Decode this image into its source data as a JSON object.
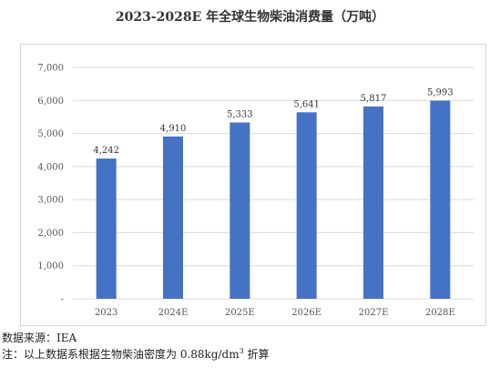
{
  "chart_data": {
    "type": "bar",
    "title": "2023-2028E 年全球生物柴油消费量（万吨）",
    "categories": [
      "2023",
      "2024E",
      "2025E",
      "2026E",
      "2027E",
      "2028E"
    ],
    "values": [
      4242,
      4910,
      5333,
      5641,
      5817,
      5993
    ],
    "value_labels": [
      "4,242",
      "4,910",
      "5,333",
      "5,641",
      "5,817",
      "5,993"
    ],
    "yticks": [
      0,
      1000,
      2000,
      3000,
      4000,
      5000,
      6000,
      7000
    ],
    "ytick_labels": [
      "-",
      "1,000",
      "2,000",
      "3,000",
      "4,000",
      "5,000",
      "6,000",
      "7,000"
    ],
    "ylim": [
      0,
      7000
    ],
    "xlabel": "",
    "ylabel": "",
    "grid": true,
    "legend": "none",
    "bar_color": "#4472C4",
    "grid_color": "#d9d9d9"
  },
  "footer": {
    "source": "数据来源：IEA",
    "note_prefix": "注：以上数据系根据生物柴油密度为 0.88kg/dm",
    "note_sup": "3",
    "note_suffix": " 折算"
  }
}
